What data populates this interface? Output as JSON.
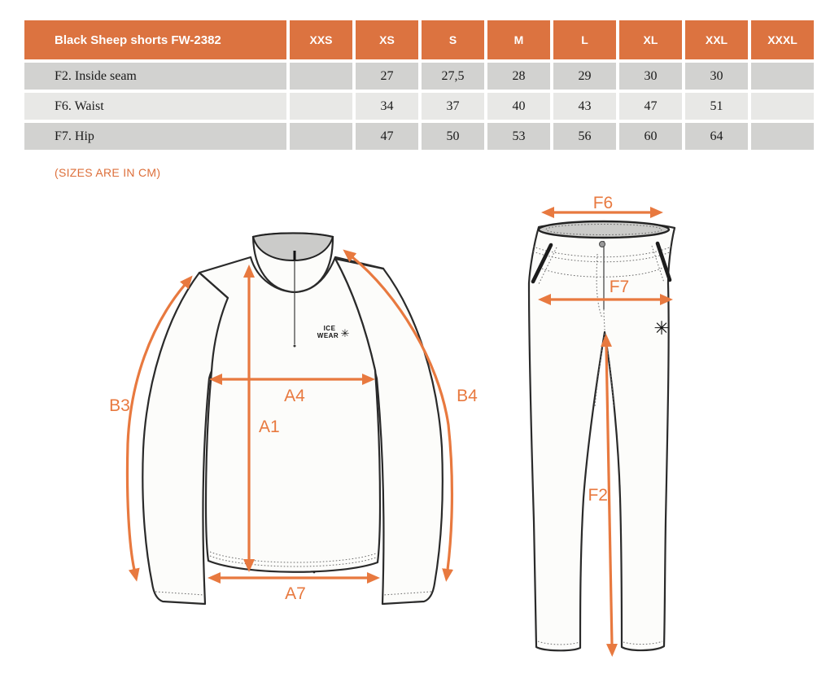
{
  "table": {
    "title": "Black Sheep shorts FW-2382",
    "size_columns": [
      "XXS",
      "XS",
      "S",
      "M",
      "L",
      "XL",
      "XXL",
      "XXXL"
    ],
    "rows": [
      {
        "label": "F2. Inside seam",
        "values": [
          "",
          "27",
          "27,5",
          "28",
          "29",
          "30",
          "30",
          ""
        ]
      },
      {
        "label": "F6. Waist",
        "values": [
          "",
          "34",
          "37",
          "40",
          "43",
          "47",
          "51",
          ""
        ]
      },
      {
        "label": "F7. Hip",
        "values": [
          "",
          "47",
          "50",
          "53",
          "56",
          "60",
          "64",
          ""
        ]
      }
    ]
  },
  "note": {
    "text": "(SIZES ARE IN CM)"
  },
  "diagram": {
    "shirt": {
      "logo_line1": "ICE",
      "logo_line2": "WEAR",
      "logo_icon": "✳",
      "labels": {
        "chest": "A4",
        "front_length": "A1",
        "hem": "A7",
        "left_sleeve": "B3",
        "right_sleeve": "B4"
      }
    },
    "pants": {
      "logo_icon": "✳",
      "labels": {
        "waist": "F6",
        "hip": "F7",
        "inseam": "F2"
      }
    }
  },
  "colors": {
    "header_orange": "#DC7340",
    "arrow_orange": "#E8793F",
    "note_orange": "#DD6F3A",
    "row_dark": "#D2D2D0",
    "row_light": "#E8E8E6",
    "collar_gray": "#CBCBC9"
  }
}
